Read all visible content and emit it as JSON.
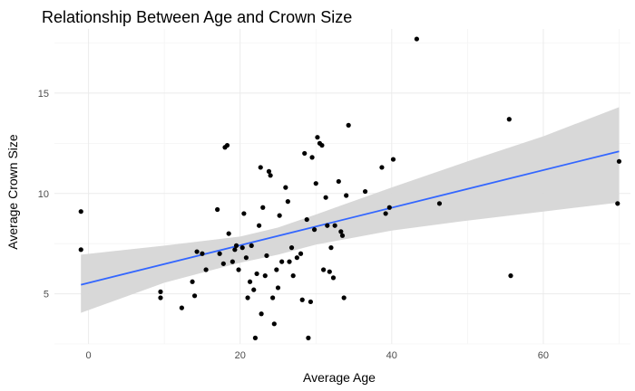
{
  "chart_data": {
    "type": "scatter",
    "title": "Relationship Between Age and Crown Size",
    "xlabel": "Average Age",
    "ylabel": "Average Crown Size",
    "xlim": [
      -4.5,
      71.5
    ],
    "ylim": [
      2.5,
      18.2
    ],
    "x_ticks": [
      0,
      20,
      40,
      60
    ],
    "y_ticks": [
      5,
      10,
      15
    ],
    "grid": true,
    "legend": "none",
    "colors": {
      "points": "#000000",
      "fit_line": "#3366FF",
      "band": "#d6d6d6"
    },
    "points": [
      [
        -1,
        9.1
      ],
      [
        -1,
        7.2
      ],
      [
        9.5,
        5.1
      ],
      [
        9.5,
        4.8
      ],
      [
        12.3,
        4.3
      ],
      [
        13.7,
        5.6
      ],
      [
        14,
        4.9
      ],
      [
        14.3,
        7.1
      ],
      [
        15,
        7.0
      ],
      [
        15.5,
        6.2
      ],
      [
        17,
        9.2
      ],
      [
        17.3,
        7.0
      ],
      [
        17.8,
        6.5
      ],
      [
        18,
        12.3
      ],
      [
        18.3,
        12.4
      ],
      [
        18.5,
        8.0
      ],
      [
        19,
        6.6
      ],
      [
        19.3,
        7.2
      ],
      [
        19.5,
        7.4
      ],
      [
        19.8,
        6.2
      ],
      [
        20.3,
        7.3
      ],
      [
        20.5,
        9.0
      ],
      [
        20.8,
        6.8
      ],
      [
        21,
        4.8
      ],
      [
        21.3,
        5.6
      ],
      [
        21.5,
        7.4
      ],
      [
        21.8,
        5.2
      ],
      [
        22,
        2.8
      ],
      [
        22.2,
        6.0
      ],
      [
        22.5,
        8.4
      ],
      [
        22.7,
        11.3
      ],
      [
        22.8,
        4.0
      ],
      [
        23,
        9.3
      ],
      [
        23.3,
        5.9
      ],
      [
        23.5,
        6.9
      ],
      [
        23.8,
        11.1
      ],
      [
        24,
        10.9
      ],
      [
        24.3,
        4.8
      ],
      [
        24.5,
        3.5
      ],
      [
        24.8,
        6.2
      ],
      [
        25,
        5.3
      ],
      [
        25.2,
        8.9
      ],
      [
        25.5,
        6.6
      ],
      [
        26,
        10.3
      ],
      [
        26.3,
        9.6
      ],
      [
        26.5,
        6.6
      ],
      [
        26.8,
        7.3
      ],
      [
        27,
        5.9
      ],
      [
        27.5,
        6.8
      ],
      [
        28,
        7.0
      ],
      [
        28.2,
        4.7
      ],
      [
        28.5,
        12.0
      ],
      [
        28.8,
        8.7
      ],
      [
        29,
        2.8
      ],
      [
        29.3,
        4.6
      ],
      [
        29.5,
        11.8
      ],
      [
        29.8,
        8.2
      ],
      [
        30,
        10.5
      ],
      [
        30.2,
        12.8
      ],
      [
        30.5,
        12.5
      ],
      [
        30.8,
        12.4
      ],
      [
        31,
        6.2
      ],
      [
        31.3,
        9.8
      ],
      [
        31.5,
        8.4
      ],
      [
        31.8,
        6.1
      ],
      [
        32,
        7.3
      ],
      [
        32.3,
        5.8
      ],
      [
        32.5,
        8.4
      ],
      [
        33,
        10.6
      ],
      [
        33.3,
        8.1
      ],
      [
        33.5,
        7.9
      ],
      [
        33.7,
        4.8
      ],
      [
        34,
        9.9
      ],
      [
        34.3,
        13.4
      ],
      [
        36.5,
        10.1
      ],
      [
        38.7,
        11.3
      ],
      [
        39.2,
        9.0
      ],
      [
        39.7,
        9.3
      ],
      [
        40.2,
        11.7
      ],
      [
        43.3,
        17.7
      ],
      [
        46.3,
        9.5
      ],
      [
        55.5,
        13.7
      ],
      [
        55.7,
        5.9
      ],
      [
        69.8,
        9.5
      ],
      [
        70,
        11.6
      ]
    ],
    "fit_line": {
      "x": [
        -1,
        70
      ],
      "y": [
        5.45,
        12.1
      ]
    },
    "confidence_band": {
      "x": [
        -1,
        10,
        20,
        25,
        30,
        40,
        50,
        60,
        70
      ],
      "lower": [
        4.05,
        5.55,
        6.55,
        6.95,
        7.45,
        8.15,
        8.65,
        9.1,
        9.55
      ],
      "upper": [
        6.95,
        7.4,
        7.85,
        8.3,
        8.95,
        10.3,
        11.6,
        12.85,
        14.3
      ]
    }
  }
}
